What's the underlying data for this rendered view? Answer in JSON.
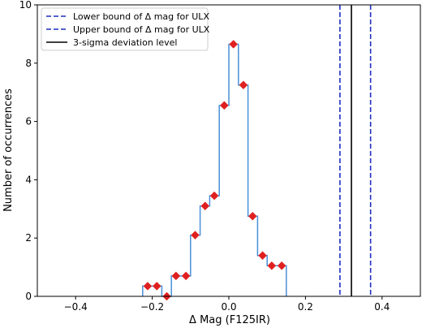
{
  "chart_data": {
    "type": "line",
    "xlabel": "Δ Mag (F125IR)",
    "ylabel": "Number of occurrences",
    "xlim": [
      -0.5,
      0.5
    ],
    "ylim": [
      0,
      10
    ],
    "xticks": [
      -0.4,
      -0.2,
      0.0,
      0.2,
      0.4
    ],
    "yticks": [
      0,
      2,
      4,
      6,
      8,
      10
    ],
    "xtick_labels": [
      "−0.4",
      "−0.2",
      "0.0",
      "0.2",
      "0.4"
    ],
    "ytick_labels": [
      "0",
      "2",
      "4",
      "6",
      "8",
      "10"
    ],
    "grid": false,
    "legend_position": "top-left",
    "histogram": {
      "color": "#4a90d9",
      "x_start": -0.225,
      "bin_edges": [
        -0.225,
        -0.2,
        -0.175,
        -0.15,
        -0.125,
        -0.1,
        -0.075,
        -0.05,
        -0.025,
        0.0,
        0.025,
        0.05,
        0.075,
        0.1,
        0.125,
        0.15
      ],
      "counts": [
        0.35,
        0.35,
        0.0,
        0.7,
        0.7,
        2.1,
        3.1,
        3.45,
        6.55,
        8.65,
        7.25,
        2.75,
        1.4,
        1.05,
        1.05
      ]
    },
    "markers": {
      "color": "#e02020",
      "shape": "diamond",
      "x": [
        -0.212,
        -0.188,
        -0.162,
        -0.138,
        -0.112,
        -0.088,
        -0.062,
        -0.038,
        -0.012,
        0.012,
        0.038,
        0.062,
        0.088,
        0.112,
        0.138
      ],
      "y": [
        0.35,
        0.35,
        0.0,
        0.7,
        0.7,
        2.1,
        3.1,
        3.45,
        6.55,
        8.65,
        7.25,
        2.75,
        1.4,
        1.05,
        1.05
      ]
    },
    "vlines": [
      {
        "label": "Lower bound of Δ mag for ULX",
        "x": 0.29,
        "color": "#1f2fbf",
        "style": "dashed"
      },
      {
        "label": "Upper bound of Δ mag for ULX",
        "x": 0.37,
        "color": "#1f2fbf",
        "style": "dashed"
      },
      {
        "label": "3-sigma deviation level",
        "x": 0.32,
        "color": "#000000",
        "style": "solid"
      }
    ]
  }
}
